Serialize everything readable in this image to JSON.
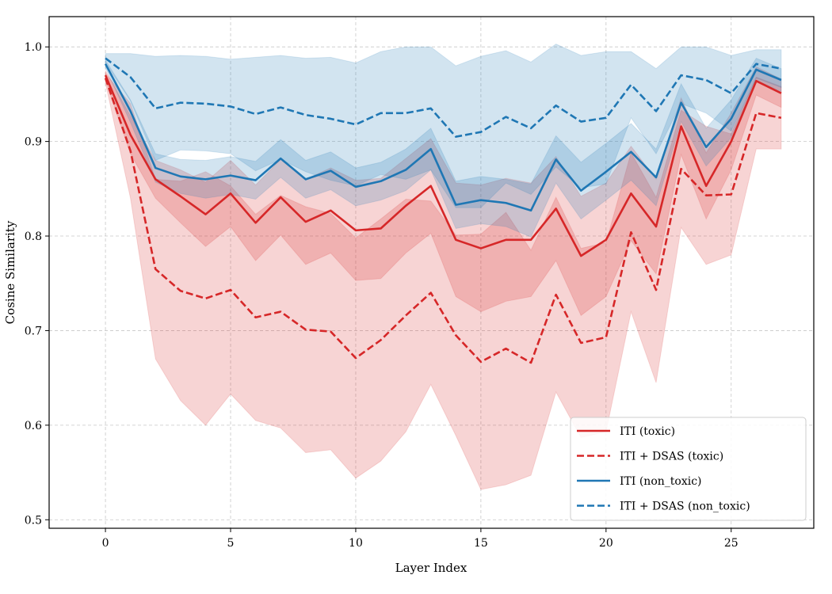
{
  "chart_data": {
    "type": "line",
    "title": "",
    "xlabel": "Layer Index",
    "ylabel": "Cosine Similarity",
    "xlim": [
      -2.25,
      28.3
    ],
    "ylim": [
      0.491,
      1.032
    ],
    "xticks": [
      0,
      5,
      10,
      15,
      20,
      25
    ],
    "xtick_labels": [
      "0",
      "5",
      "10",
      "15",
      "20",
      "25"
    ],
    "yticks": [
      0.5,
      0.6,
      0.7,
      0.8,
      0.9,
      1.0
    ],
    "ytick_labels": [
      "0.5",
      "0.6",
      "0.7",
      "0.8",
      "0.9",
      "1.0"
    ],
    "grid": true,
    "legend_position": "lower-right",
    "x": [
      0,
      1,
      2,
      3,
      4,
      5,
      6,
      7,
      8,
      9,
      10,
      11,
      12,
      13,
      14,
      15,
      16,
      17,
      18,
      19,
      20,
      21,
      22,
      23,
      24,
      25,
      26,
      27
    ],
    "series": [
      {
        "name": "ITI (toxic)",
        "color": "#d62728",
        "dash": false,
        "values": [
          0.97,
          0.907,
          0.86,
          0.842,
          0.823,
          0.845,
          0.814,
          0.841,
          0.815,
          0.827,
          0.806,
          0.808,
          0.832,
          0.853,
          0.796,
          0.787,
          0.796,
          0.796,
          0.829,
          0.779,
          0.796,
          0.845,
          0.81,
          0.916,
          0.853,
          0.9,
          0.964,
          0.951
        ],
        "std": [
          0.005,
          0.02,
          0.02,
          0.028,
          0.034,
          0.035,
          0.04,
          0.04,
          0.045,
          0.045,
          0.053,
          0.053,
          0.05,
          0.05,
          0.06,
          0.067,
          0.065,
          0.06,
          0.055,
          0.063,
          0.06,
          0.05,
          0.05,
          0.03,
          0.035,
          0.03,
          0.015,
          0.015
        ]
      },
      {
        "name": "ITI + DSAS (toxic)",
        "color": "#d62728",
        "dash": true,
        "values": [
          0.967,
          0.89,
          0.765,
          0.742,
          0.734,
          0.743,
          0.714,
          0.72,
          0.701,
          0.699,
          0.671,
          0.69,
          0.716,
          0.74,
          0.695,
          0.667,
          0.681,
          0.666,
          0.738,
          0.687,
          0.693,
          0.804,
          0.743,
          0.871,
          0.843,
          0.844,
          0.93,
          0.925
        ],
        "std": [
          0.005,
          0.05,
          0.095,
          0.116,
          0.134,
          0.11,
          0.109,
          0.123,
          0.13,
          0.125,
          0.127,
          0.128,
          0.123,
          0.097,
          0.106,
          0.135,
          0.144,
          0.119,
          0.103,
          0.1,
          0.1,
          0.084,
          0.098,
          0.062,
          0.073,
          0.064,
          0.038,
          0.033
        ]
      },
      {
        "name": "ITI (non_toxic)",
        "color": "#1f77b4",
        "dash": false,
        "values": [
          0.982,
          0.932,
          0.872,
          0.863,
          0.86,
          0.864,
          0.859,
          0.882,
          0.86,
          0.869,
          0.852,
          0.858,
          0.87,
          0.892,
          0.833,
          0.838,
          0.835,
          0.827,
          0.881,
          0.848,
          0.868,
          0.889,
          0.862,
          0.941,
          0.894,
          0.924,
          0.976,
          0.965
        ],
        "std": [
          0.004,
          0.012,
          0.015,
          0.018,
          0.02,
          0.02,
          0.02,
          0.02,
          0.02,
          0.02,
          0.02,
          0.02,
          0.022,
          0.022,
          0.025,
          0.025,
          0.025,
          0.028,
          0.025,
          0.03,
          0.03,
          0.03,
          0.03,
          0.02,
          0.02,
          0.02,
          0.012,
          0.012
        ]
      },
      {
        "name": "ITI + DSAS (non_toxic)",
        "color": "#1f77b4",
        "dash": true,
        "values": [
          0.988,
          0.968,
          0.935,
          0.941,
          0.94,
          0.937,
          0.929,
          0.936,
          0.928,
          0.924,
          0.918,
          0.93,
          0.93,
          0.935,
          0.905,
          0.91,
          0.926,
          0.914,
          0.938,
          0.921,
          0.925,
          0.96,
          0.932,
          0.97,
          0.965,
          0.951,
          0.982,
          0.977
        ],
        "std": [
          0.005,
          0.025,
          0.055,
          0.05,
          0.05,
          0.05,
          0.06,
          0.055,
          0.06,
          0.065,
          0.065,
          0.065,
          0.07,
          0.065,
          0.075,
          0.08,
          0.07,
          0.07,
          0.065,
          0.07,
          0.07,
          0.035,
          0.045,
          0.03,
          0.035,
          0.04,
          0.015,
          0.02
        ]
      }
    ]
  }
}
